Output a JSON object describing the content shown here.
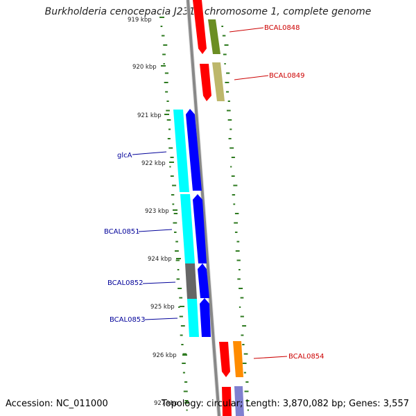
{
  "header": {
    "title": "Burkholderia cenocepacia J2315 chromosome 1, complete genome"
  },
  "footer": {
    "accession": "Accession: NC_011000",
    "summary": "Topology: circular; Length: 3,870,082 bp; Genes: 3,557"
  },
  "ruler": {
    "ticks": [
      {
        "label": "919 kbp"
      },
      {
        "label": "920 kbp"
      },
      {
        "label": "921 kbp"
      },
      {
        "label": "922 kbp"
      },
      {
        "label": "923 kbp"
      },
      {
        "label": "924 kbp"
      },
      {
        "label": "925 kbp"
      },
      {
        "label": "926 kbp"
      },
      {
        "label": "927 kbp"
      }
    ]
  },
  "genes": [
    {
      "label": "BCAL0848",
      "color": "#cc0000"
    },
    {
      "label": "BCAL0849",
      "color": "#cc0000"
    },
    {
      "label": "glcA",
      "color": "#000099"
    },
    {
      "label": "BCAL0851",
      "color": "#000099"
    },
    {
      "label": "BCAL0852",
      "color": "#000099"
    },
    {
      "label": "BCAL0853",
      "color": "#000099"
    },
    {
      "label": "BCAL0854",
      "color": "#cc0000"
    }
  ],
  "colors": {
    "backbone": "#888888",
    "cds_red": "#ff0000",
    "cds_blue": "#0000ff",
    "cog_cyan": "#00ffff",
    "cog_olive": "#6b8e23",
    "cog_khaki": "#bdb76b",
    "cog_gray": "#666666",
    "cog_orange": "#ff8c00",
    "cog_lavender": "#8080d0",
    "gc_green": "#2d7a1f"
  }
}
